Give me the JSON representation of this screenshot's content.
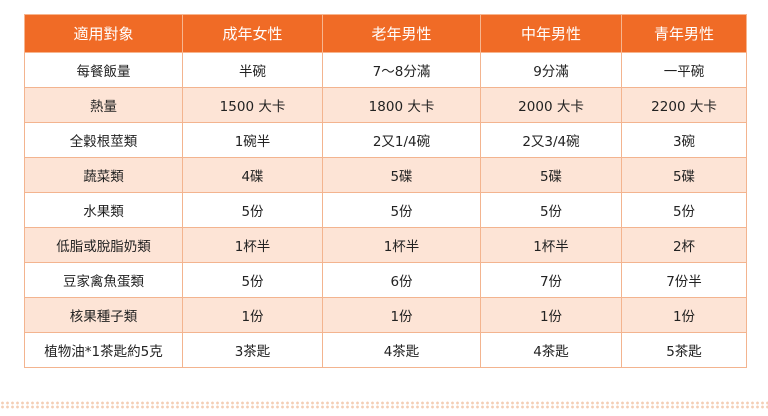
{
  "table": {
    "headers": [
      "適用對象",
      "成年女性",
      "老年男性",
      "中年男性",
      "青年男性"
    ],
    "rows": [
      [
        "每餐飯量",
        "半碗",
        "7～8分滿",
        "9分滿",
        "一平碗"
      ],
      [
        "熱量",
        "1500 大卡",
        "1800 大卡",
        "2000 大卡",
        "2200 大卡"
      ],
      [
        "全穀根莖類",
        "1碗半",
        "2又1/4碗",
        "2又3/4碗",
        "3碗"
      ],
      [
        "蔬菜類",
        "4碟",
        "5碟",
        "5碟",
        "5碟"
      ],
      [
        "水果類",
        "5份",
        "5份",
        "5份",
        "5份"
      ],
      [
        "低脂或脫脂奶類",
        "1杯半",
        "1杯半",
        "1杯半",
        "2杯"
      ],
      [
        "豆家禽魚蛋類",
        "5份",
        "6份",
        "7份",
        "7份半"
      ],
      [
        "核果種子類",
        "1份",
        "1份",
        "1份",
        "1份"
      ],
      [
        "植物油*1茶匙約5克",
        "3茶匙",
        "4茶匙",
        "4茶匙",
        "5茶匙"
      ]
    ]
  },
  "colors": {
    "header_bg": "#f06b26",
    "alt_row_bg": "#fde4d6",
    "border": "#f3b48f"
  }
}
